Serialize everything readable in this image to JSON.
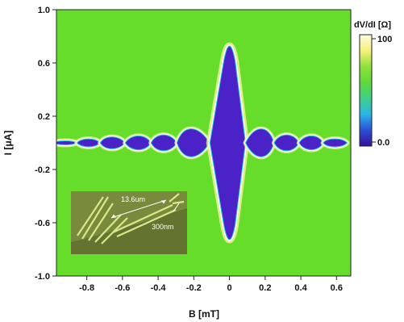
{
  "chart_data": {
    "type": "heatmap",
    "title": "",
    "xlabel": "B [mT]",
    "ylabel": "I [μA]",
    "xlim": [
      -0.97,
      0.68
    ],
    "ylim": [
      -1.0,
      1.0
    ],
    "x_ticks": [
      -0.8,
      -0.6,
      -0.4,
      -0.2,
      0,
      0.2,
      0.4,
      0.6
    ],
    "x_tick_labels": [
      "-0.8",
      "-0.6",
      "-0.4",
      "-0.2",
      "0",
      "0.2",
      "0.4",
      "0.6"
    ],
    "y_ticks": [
      1.0,
      0.6,
      0.2,
      -0.2,
      -0.6,
      -1.0
    ],
    "y_tick_labels": [
      "1.0",
      "0.6",
      "0.2",
      "-0.2",
      "-0.6",
      "-1.0"
    ],
    "colorbar": {
      "label": "dV/dI [Ω]",
      "range": [
        0,
        100
      ],
      "tick_values": [
        100,
        0
      ],
      "tick_labels": [
        "100",
        "0.0"
      ],
      "colors": [
        "#fffbe0",
        "#f7f07a",
        "#8fe23a",
        "#5fd93a",
        "#3fcf8a",
        "#2bb6e6",
        "#2a4fd8",
        "#3a0f9a"
      ]
    },
    "background_color": "#66dd2a",
    "supercurrent_color": "#4a22c8",
    "edge_color": "#ffffff",
    "critical_current_lobes": [
      {
        "center_B": -0.92,
        "Ic": 0.02
      },
      {
        "center_B": -0.79,
        "Ic": 0.04
      },
      {
        "center_B": -0.66,
        "Ic": 0.06
      },
      {
        "center_B": -0.51,
        "Ic": 0.07
      },
      {
        "center_B": -0.37,
        "Ic": 0.08
      },
      {
        "center_B": -0.22,
        "Ic": 0.14
      },
      {
        "center_B": 0.0,
        "Ic": 0.8
      },
      {
        "center_B": 0.18,
        "Ic": 0.14
      },
      {
        "center_B": 0.32,
        "Ic": 0.08
      },
      {
        "center_B": 0.46,
        "Ic": 0.07
      },
      {
        "center_B": 0.59,
        "Ic": 0.04
      }
    ]
  },
  "inset": {
    "length_label": "13.6um",
    "width_label": "300nm"
  }
}
